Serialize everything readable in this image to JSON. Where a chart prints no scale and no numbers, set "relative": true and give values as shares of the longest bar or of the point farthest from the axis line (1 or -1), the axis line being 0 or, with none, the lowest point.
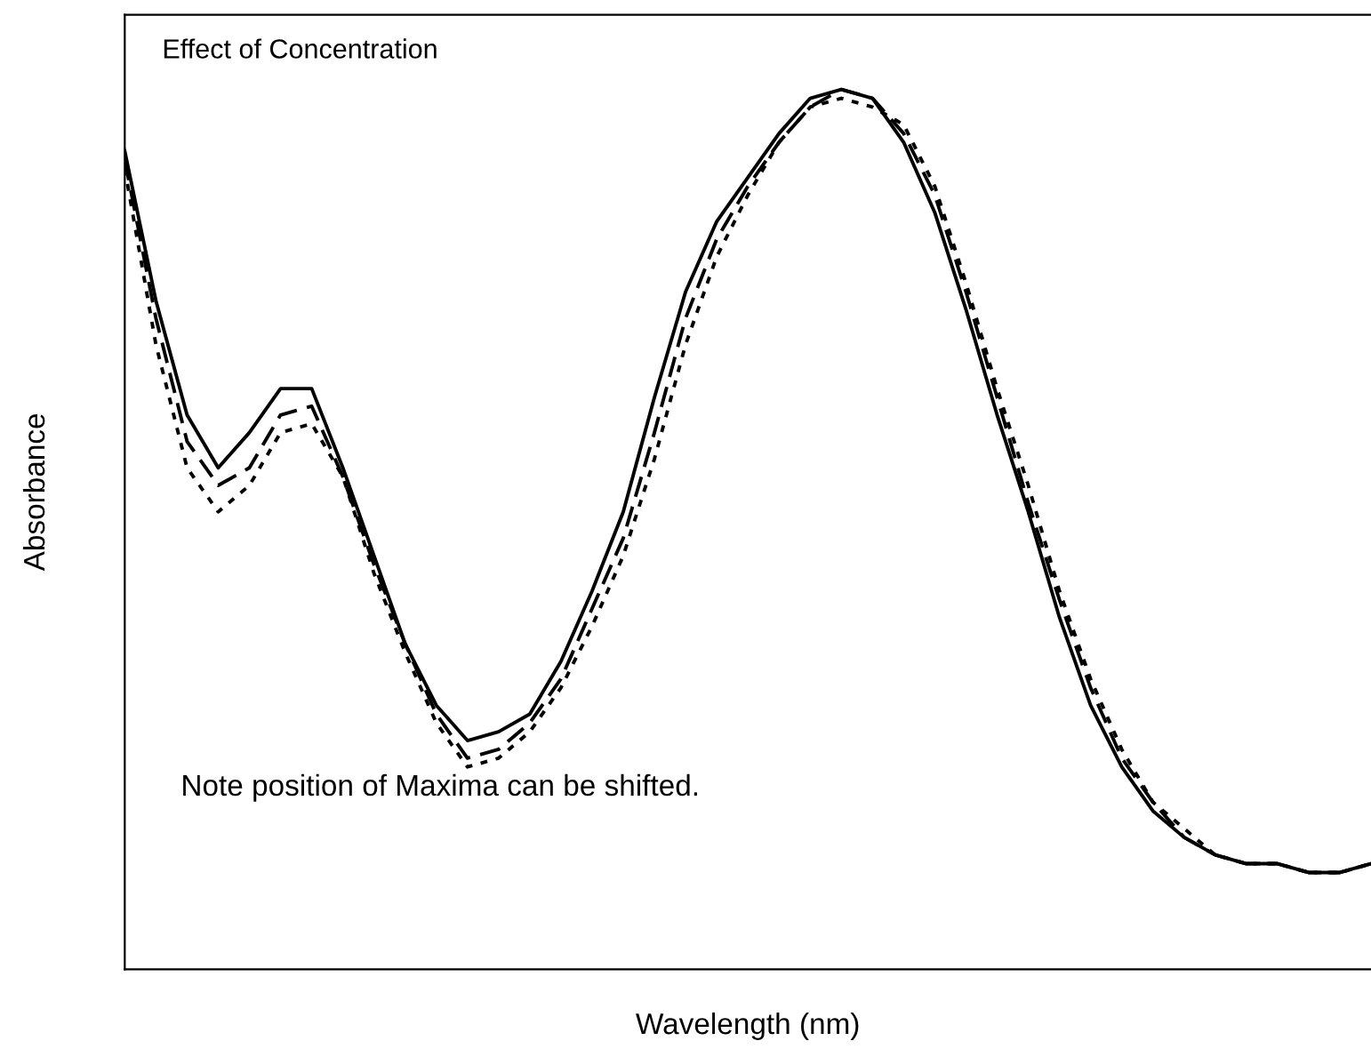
{
  "chart_data": {
    "type": "line",
    "title": "Effect of Concentration",
    "xlabel": "Wavelength (nm)",
    "ylabel": "Absorbance",
    "relative": true,
    "grid": false,
    "legend": false,
    "marker": "none",
    "annotations": [
      "Note position of Maxima can be shifted."
    ],
    "categories": [
      null,
      null,
      null,
      null,
      null,
      null,
      null,
      null,
      null,
      null,
      null,
      null,
      null,
      null,
      null,
      null,
      null,
      null,
      null,
      null,
      null,
      null,
      null,
      null,
      null,
      null,
      null,
      null,
      null,
      null,
      null,
      null,
      null,
      null,
      null,
      null,
      null,
      null,
      null,
      null,
      null
    ],
    "series": [
      {
        "color": "#000000",
        "line_style": "solid",
        "values": [
          0.93,
          0.76,
          0.63,
          0.57,
          0.61,
          0.66,
          0.66,
          0.57,
          0.47,
          0.37,
          0.3,
          0.26,
          0.27,
          0.29,
          0.35,
          0.43,
          0.52,
          0.65,
          0.77,
          0.85,
          0.9,
          0.95,
          0.99,
          1.0,
          0.99,
          0.94,
          0.86,
          0.75,
          0.63,
          0.52,
          0.4,
          0.3,
          0.23,
          0.18,
          0.15,
          0.13,
          0.12,
          0.12,
          0.11,
          0.11,
          0.12
        ]
      },
      {
        "color": "#000000",
        "line_style": "dashed",
        "values": [
          0.92,
          0.74,
          0.6,
          0.55,
          0.57,
          0.63,
          0.64,
          0.56,
          0.46,
          0.37,
          0.29,
          0.24,
          0.25,
          0.28,
          0.33,
          0.41,
          0.49,
          0.61,
          0.74,
          0.83,
          0.89,
          0.94,
          0.98,
          1.0,
          0.99,
          0.95,
          0.88,
          0.77,
          0.65,
          0.53,
          0.42,
          0.32,
          0.24,
          0.19,
          0.15,
          0.13,
          0.12,
          0.12,
          0.11,
          0.11,
          0.12
        ]
      },
      {
        "color": "#000000",
        "line_style": "dotted",
        "values": [
          0.91,
          0.71,
          0.57,
          0.52,
          0.55,
          0.61,
          0.62,
          0.56,
          0.45,
          0.36,
          0.28,
          0.23,
          0.24,
          0.27,
          0.32,
          0.39,
          0.47,
          0.58,
          0.71,
          0.81,
          0.88,
          0.94,
          0.98,
          0.99,
          0.98,
          0.96,
          0.89,
          0.78,
          0.66,
          0.55,
          0.43,
          0.33,
          0.25,
          0.19,
          0.16,
          0.13,
          0.12,
          0.12,
          0.11,
          0.11,
          0.12
        ]
      }
    ]
  }
}
